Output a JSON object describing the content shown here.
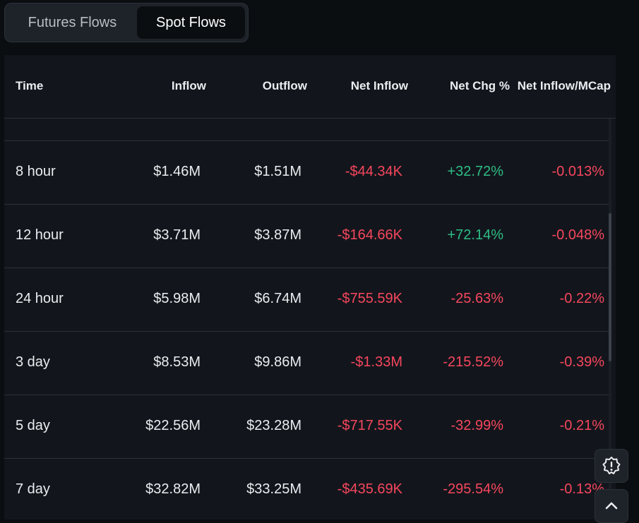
{
  "tabs": [
    {
      "label": "Futures Flows",
      "active": false
    },
    {
      "label": "Spot Flows",
      "active": true
    }
  ],
  "table": {
    "headers": {
      "time": "Time",
      "inflow": "Inflow",
      "outflow": "Outflow",
      "net_inflow": "Net Inflow",
      "net_chg": "Net Chg %",
      "net_mcap": "Net Inflow/MCap"
    },
    "rows": [
      {
        "time": "8 hour",
        "inflow": "$1.46M",
        "outflow": "$1.51M",
        "net_inflow": "-$44.34K",
        "net_chg": "+32.72%",
        "net_mcap": "-0.013%"
      },
      {
        "time": "12 hour",
        "inflow": "$3.71M",
        "outflow": "$3.87M",
        "net_inflow": "-$164.66K",
        "net_chg": "+72.14%",
        "net_mcap": "-0.048%"
      },
      {
        "time": "24 hour",
        "inflow": "$5.98M",
        "outflow": "$6.74M",
        "net_inflow": "-$755.59K",
        "net_chg": "-25.63%",
        "net_mcap": "-0.22%"
      },
      {
        "time": "3 day",
        "inflow": "$8.53M",
        "outflow": "$9.86M",
        "net_inflow": "-$1.33M",
        "net_chg": "-215.52%",
        "net_mcap": "-0.39%"
      },
      {
        "time": "5 day",
        "inflow": "$22.56M",
        "outflow": "$23.28M",
        "net_inflow": "-$717.55K",
        "net_chg": "-32.99%",
        "net_mcap": "-0.21%"
      },
      {
        "time": "7 day",
        "inflow": "$32.82M",
        "outflow": "$33.25M",
        "net_inflow": "-$435.69K",
        "net_chg": "-295.54%",
        "net_mcap": "-0.13%"
      }
    ]
  },
  "colors": {
    "negative": "#f6465d",
    "positive": "#2ebd85",
    "background": "#0b0e11"
  },
  "icons": {
    "alert": "alert-badge-icon",
    "scroll_top": "chevron-up-icon"
  }
}
